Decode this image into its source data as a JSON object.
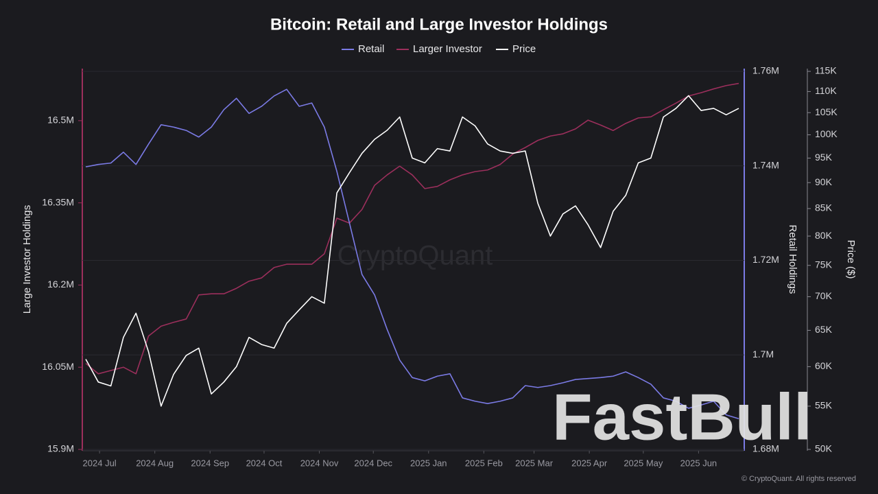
{
  "chart_data": {
    "type": "line",
    "title": "Bitcoin: Retail and Large Investor Holdings",
    "watermark": "CryptoQuant",
    "logo": "FastBull",
    "copyright": "© CryptoQuant. All rights reserved",
    "y_label": "Large Investor Holdings",
    "y2_label": "Retail Holdings",
    "y3_label": "Price ($)",
    "xlim": [
      0,
      52
    ],
    "xticks": [
      {
        "value": 1.1,
        "label": "2024 Jul"
      },
      {
        "value": 5.5,
        "label": "2024 Aug"
      },
      {
        "value": 9.9,
        "label": "2024 Sep"
      },
      {
        "value": 14.2,
        "label": "2024 Oct"
      },
      {
        "value": 18.6,
        "label": "2024 Nov"
      },
      {
        "value": 22.9,
        "label": "2024 Dec"
      },
      {
        "value": 27.3,
        "label": "2025 Jan"
      },
      {
        "value": 31.7,
        "label": "2025 Feb"
      },
      {
        "value": 35.7,
        "label": "2025 Mar"
      },
      {
        "value": 40.1,
        "label": "2025 Apr"
      },
      {
        "value": 44.4,
        "label": "2025 May"
      },
      {
        "value": 48.8,
        "label": "2025 Jun"
      }
    ],
    "ylim": [
      15900000,
      16590000
    ],
    "yticks": [
      {
        "value": 15900000,
        "label": "15.9M"
      },
      {
        "value": 16050000,
        "label": "16.05M"
      },
      {
        "value": 16200000,
        "label": "16.2M"
      },
      {
        "value": 16350000,
        "label": "16.35M"
      },
      {
        "value": 16500000,
        "label": "16.5M"
      }
    ],
    "y2lim": [
      1680000,
      1760000
    ],
    "y2ticks": [
      {
        "value": 1680000,
        "label": "1.68M"
      },
      {
        "value": 1700000,
        "label": "1.7M"
      },
      {
        "value": 1720000,
        "label": "1.72M"
      },
      {
        "value": 1740000,
        "label": "1.74M"
      },
      {
        "value": 1760000,
        "label": "1.76M"
      }
    ],
    "y3lim": [
      50000,
      115000
    ],
    "y3log": true,
    "y3ticks": [
      {
        "value": 50000,
        "label": "50K"
      },
      {
        "value": 55000,
        "label": "55K"
      },
      {
        "value": 60000,
        "label": "60K"
      },
      {
        "value": 65000,
        "label": "65K"
      },
      {
        "value": 70000,
        "label": "70K"
      },
      {
        "value": 75000,
        "label": "75K"
      },
      {
        "value": 80000,
        "label": "80K"
      },
      {
        "value": 85000,
        "label": "85K"
      },
      {
        "value": 90000,
        "label": "90K"
      },
      {
        "value": 95000,
        "label": "95K"
      },
      {
        "value": 100000,
        "label": "100K"
      },
      {
        "value": 105000,
        "label": "105K"
      },
      {
        "value": 110000,
        "label": "110K"
      },
      {
        "value": 115000,
        "label": "115K"
      }
    ],
    "grid": "y2",
    "legend": "top",
    "series": [
      {
        "name": "Retail",
        "color": "#7b7be6",
        "axis": "y2",
        "values": [
          1739800,
          1740300,
          1740600,
          1742900,
          1740300,
          1744600,
          1748700,
          1748200,
          1747500,
          1746100,
          1748200,
          1751900,
          1754300,
          1751100,
          1752600,
          1754800,
          1756200,
          1752600,
          1753300,
          1748200,
          1738800,
          1727900,
          1717000,
          1712700,
          1705400,
          1698900,
          1695200,
          1694500,
          1695500,
          1696000,
          1690900,
          1690200,
          1689700,
          1690200,
          1690900,
          1693500,
          1693100,
          1693500,
          1694100,
          1694800,
          1695000,
          1695200,
          1695500,
          1696400,
          1695200,
          1693800,
          1690900,
          1690200,
          1688700,
          1689400,
          1690200,
          1687300,
          1686500
        ]
      },
      {
        "name": "Larger Investor",
        "color": "#9c2f5c",
        "axis": "y",
        "values": [
          16057000,
          16038000,
          16044000,
          16050000,
          16038000,
          16107000,
          16125000,
          16132000,
          16138000,
          16182000,
          16184000,
          16184000,
          16194000,
          16207000,
          16213000,
          16232000,
          16238000,
          16238000,
          16238000,
          16257000,
          16322000,
          16313000,
          16338000,
          16382000,
          16401000,
          16417000,
          16401000,
          16376000,
          16380000,
          16392000,
          16401000,
          16407000,
          16410000,
          16420000,
          16439000,
          16451000,
          16464000,
          16472000,
          16476000,
          16485000,
          16501000,
          16492000,
          16482000,
          16495000,
          16505000,
          16507000,
          16520000,
          16532000,
          16545000,
          16551000,
          16558000,
          16564000,
          16568000
        ]
      },
      {
        "name": "Price",
        "color": "#ffffff",
        "axis": "y3",
        "values": [
          61000,
          58000,
          57500,
          64000,
          67500,
          62000,
          55000,
          59000,
          61500,
          62500,
          56500,
          58000,
          60000,
          64000,
          63000,
          62500,
          66000,
          68000,
          70000,
          69000,
          88000,
          92000,
          96000,
          99000,
          101000,
          104000,
          95000,
          94000,
          97000,
          96500,
          104000,
          102000,
          98000,
          96500,
          96000,
          96500,
          86000,
          80000,
          84000,
          85500,
          82000,
          78000,
          84500,
          87500,
          94000,
          95000,
          104000,
          106000,
          109000,
          105500,
          106000,
          104500,
          106000
        ]
      }
    ]
  }
}
